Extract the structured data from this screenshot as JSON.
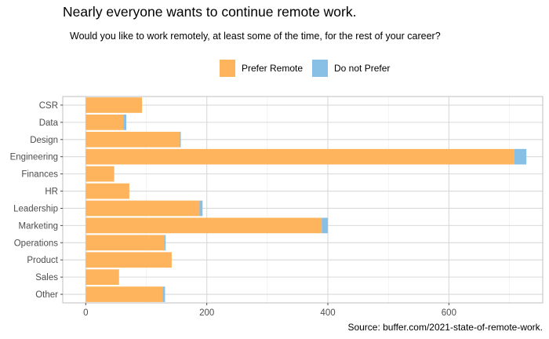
{
  "title": "Nearly everyone wants to continue remote work.",
  "subtitle": "Would you like to work remotely, at least some of the time, for the rest of your career?",
  "caption": "Source: buffer.com/2021-state-of-remote-work.",
  "colors": {
    "prefer": "#FDB45C",
    "not_prefer": "#87BFE5",
    "grid": "#d9d9d9",
    "panel_border": "#bfbfbf"
  },
  "chart_data": {
    "type": "bar",
    "orientation": "horizontal",
    "stacked": true,
    "categories": [
      "CSR",
      "Data",
      "Design",
      "Engineering",
      "Finances",
      "HR",
      "Leadership",
      "Marketing",
      "Operations",
      "Product",
      "Sales",
      "Other"
    ],
    "series": [
      {
        "name": "Prefer Remote",
        "values": [
          93,
          62,
          155,
          708,
          47,
          72,
          188,
          390,
          130,
          142,
          55,
          127
        ]
      },
      {
        "name": "Do not Prefer",
        "values": [
          0,
          5,
          2,
          20,
          0,
          0,
          5,
          10,
          2,
          0,
          0,
          4
        ]
      }
    ],
    "xlim": [
      -38,
      755
    ],
    "xticks": [
      0,
      200,
      400,
      600
    ],
    "legend_position": "top",
    "grid": true
  }
}
